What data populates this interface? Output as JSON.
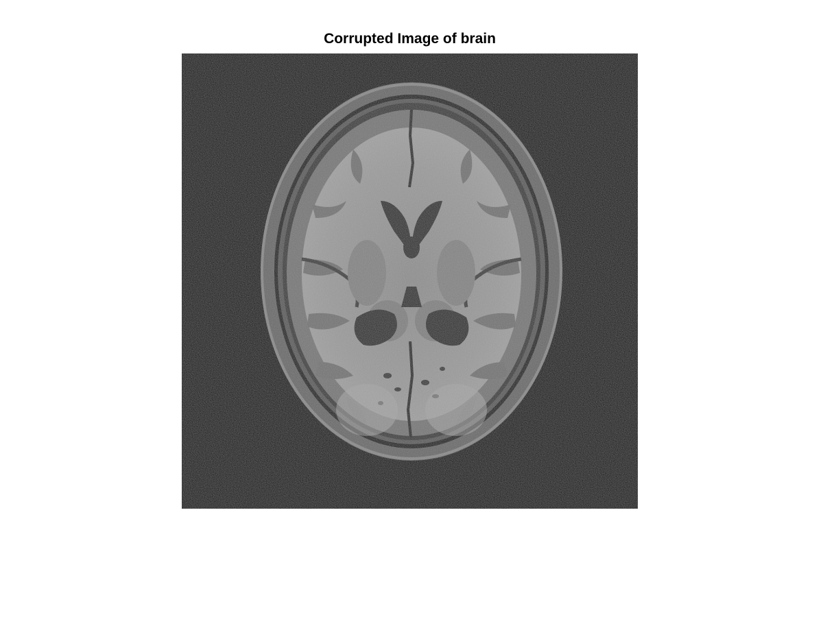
{
  "figure": {
    "title": "Corrupted Image of brain"
  },
  "image": {
    "subject": "axial MRI slice of human brain with added noise",
    "colormap": "grayscale",
    "colors": {
      "background": "#0a0a0a",
      "scalp": "#6e6e6e",
      "skull_gap": "#151515",
      "csf": "#3a3a3a",
      "gray_matter": "#7a7a7a",
      "white_matter": "#9d9d9d",
      "ventricles": "#2e2e2e"
    }
  }
}
